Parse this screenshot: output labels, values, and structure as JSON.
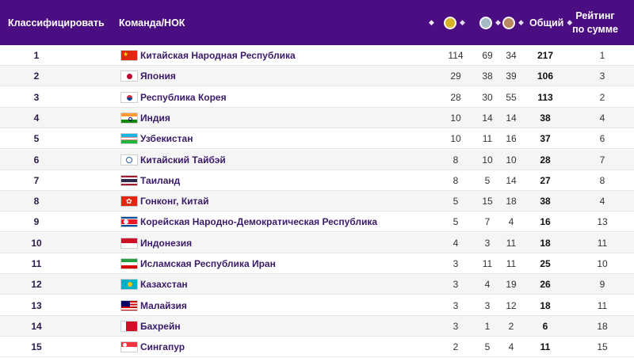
{
  "header": {
    "rank": "Классифицировать",
    "team": "Команда/НОК",
    "total": "Общий",
    "ranksum": "Рейтинг по сумме"
  },
  "icons": {
    "gold": "gold-medal-icon",
    "silver": "silver-medal-icon",
    "bronze": "bronze-medal-icon",
    "sort": "sort-icon"
  },
  "colors": {
    "header_bg": "#4a0e82",
    "gold": "#d8b329",
    "silver": "#a6b8c4",
    "bronze": "#b8895e"
  },
  "rows": [
    {
      "rank": "1",
      "name": "Китайская Народная Республика",
      "gold": "114",
      "silver": "69",
      "bronze": "34",
      "total": "217",
      "ranksum": "1",
      "flag": "china"
    },
    {
      "rank": "2",
      "name": "Япония",
      "gold": "29",
      "silver": "38",
      "bronze": "39",
      "total": "106",
      "ranksum": "3",
      "flag": "japan"
    },
    {
      "rank": "3",
      "name": "Республика Корея",
      "gold": "28",
      "silver": "30",
      "bronze": "55",
      "total": "113",
      "ranksum": "2",
      "flag": "korea"
    },
    {
      "rank": "4",
      "name": "Индия",
      "gold": "10",
      "silver": "14",
      "bronze": "14",
      "total": "38",
      "ranksum": "4",
      "flag": "india"
    },
    {
      "rank": "5",
      "name": "Узбекистан",
      "gold": "10",
      "silver": "11",
      "bronze": "16",
      "total": "37",
      "ranksum": "6",
      "flag": "uzbekistan"
    },
    {
      "rank": "6",
      "name": "Китайский Тайбэй",
      "gold": "8",
      "silver": "10",
      "bronze": "10",
      "total": "28",
      "ranksum": "7",
      "flag": "chinese-taipei"
    },
    {
      "rank": "7",
      "name": "Таиланд",
      "gold": "8",
      "silver": "5",
      "bronze": "14",
      "total": "27",
      "ranksum": "8",
      "flag": "thailand"
    },
    {
      "rank": "8",
      "name": "Гонконг, Китай",
      "gold": "5",
      "silver": "15",
      "bronze": "18",
      "total": "38",
      "ranksum": "4",
      "flag": "hong-kong"
    },
    {
      "rank": "9",
      "name": "Корейская Народно-Демократическая Республика",
      "gold": "5",
      "silver": "7",
      "bronze": "4",
      "total": "16",
      "ranksum": "13",
      "flag": "dprk"
    },
    {
      "rank": "10",
      "name": "Индонезия",
      "gold": "4",
      "silver": "3",
      "bronze": "11",
      "total": "18",
      "ranksum": "11",
      "flag": "indonesia"
    },
    {
      "rank": "11",
      "name": "Исламская Республика Иран",
      "gold": "3",
      "silver": "11",
      "bronze": "11",
      "total": "25",
      "ranksum": "10",
      "flag": "iran"
    },
    {
      "rank": "12",
      "name": "Казахстан",
      "gold": "3",
      "silver": "4",
      "bronze": "19",
      "total": "26",
      "ranksum": "9",
      "flag": "kazakhstan"
    },
    {
      "rank": "13",
      "name": "Малайзия",
      "gold": "3",
      "silver": "3",
      "bronze": "12",
      "total": "18",
      "ranksum": "11",
      "flag": "malaysia"
    },
    {
      "rank": "14",
      "name": "Бахрейн",
      "gold": "3",
      "silver": "1",
      "bronze": "2",
      "total": "6",
      "ranksum": "18",
      "flag": "bahrain"
    },
    {
      "rank": "15",
      "name": "Сингапур",
      "gold": "2",
      "silver": "5",
      "bronze": "4",
      "total": "11",
      "ranksum": "15",
      "flag": "singapore"
    }
  ]
}
